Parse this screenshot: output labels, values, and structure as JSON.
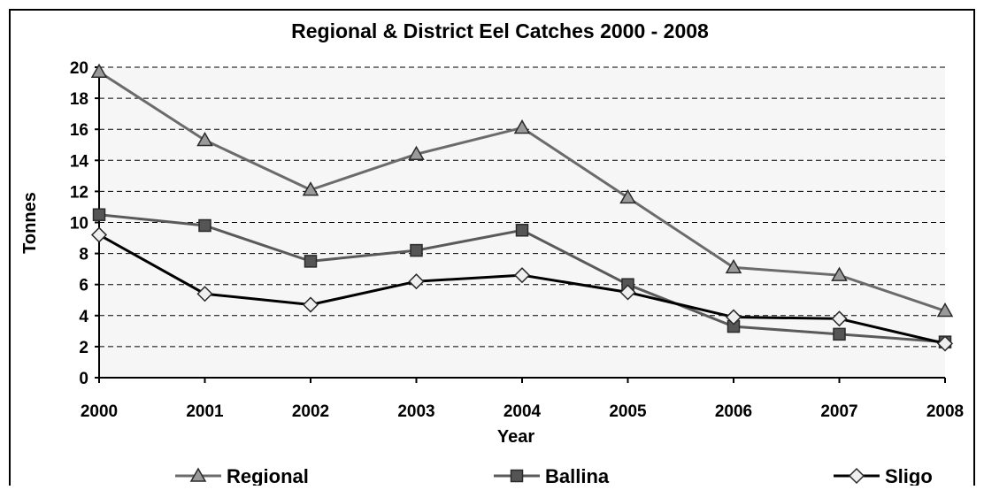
{
  "chart_data": {
    "type": "line",
    "title": "Regional & District Eel Catches 2000 - 2008",
    "xlabel": "Year",
    "ylabel": "Tonnes",
    "categories": [
      "2000",
      "2001",
      "2002",
      "2003",
      "2004",
      "2005",
      "2006",
      "2007",
      "2008"
    ],
    "ylim": [
      0,
      20
    ],
    "yticks": [
      "0",
      "2",
      "4",
      "6",
      "8",
      "10",
      "12",
      "14",
      "16",
      "18",
      "20"
    ],
    "grid": "horizontal dashed",
    "legend_position": "bottom",
    "series": [
      {
        "name": "Regional",
        "marker": "triangle",
        "color": "#6b6b6b",
        "values": [
          19.7,
          15.3,
          12.1,
          14.4,
          16.1,
          11.6,
          7.1,
          6.6,
          4.3
        ]
      },
      {
        "name": "Ballina",
        "marker": "square",
        "color": "#5a5a5a",
        "values": [
          10.5,
          9.8,
          7.5,
          8.2,
          9.5,
          6.0,
          3.3,
          2.8,
          2.3
        ]
      },
      {
        "name": "Sligo",
        "marker": "diamond",
        "color": "#000000",
        "values": [
          9.2,
          5.4,
          4.7,
          6.2,
          6.6,
          5.5,
          3.9,
          3.8,
          2.2
        ]
      }
    ]
  }
}
